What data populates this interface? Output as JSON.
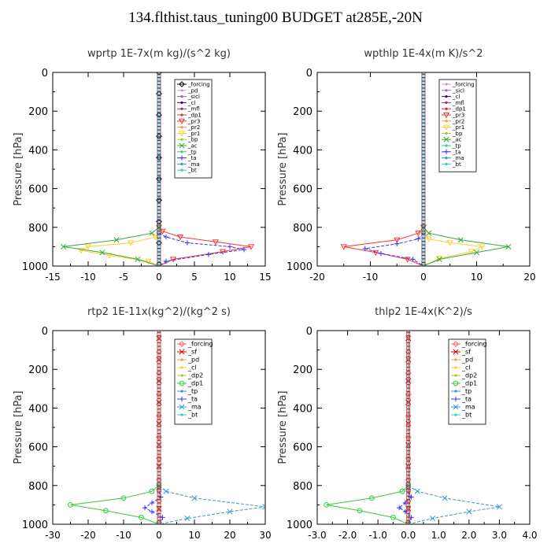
{
  "title": "134.flthist.taus_tuning00  BUDGET at285E,-20N",
  "chart_data": [
    {
      "type": "line",
      "title": "wprtp  1E-7x(m kg)/(s^2 kg)",
      "ylabel": "Pressure [hPa]",
      "xlim": [
        -15,
        15
      ],
      "ylim": [
        1000,
        0
      ],
      "xticks": [
        "-15",
        "-10",
        "-5",
        "0",
        "5",
        "10",
        "15"
      ],
      "yticks": [
        "0",
        "200",
        "400",
        "600",
        "800",
        "1000"
      ],
      "series": [
        {
          "name": "_forcing",
          "color": "#000000",
          "marker": "diamond-open",
          "x": [
            0,
            0,
            0,
            0,
            0,
            0,
            0,
            0,
            0,
            0
          ],
          "y": [
            0,
            110,
            220,
            330,
            440,
            550,
            660,
            770,
            880,
            990
          ]
        },
        {
          "name": "_pd",
          "color": "#cc99cc",
          "marker": "none",
          "x": [
            0,
            0
          ],
          "y": [
            0,
            1000
          ]
        },
        {
          "name": "_sicl",
          "color": "#9966cc",
          "marker": "none",
          "x": [
            0,
            0
          ],
          "y": [
            0,
            1000
          ]
        },
        {
          "name": "_cl",
          "color": "#660066",
          "marker": "none",
          "x": [
            0,
            0
          ],
          "y": [
            0,
            1000
          ]
        },
        {
          "name": "_mfl",
          "color": "#993366",
          "marker": "none",
          "x": [
            0,
            0
          ],
          "y": [
            0,
            1000
          ]
        },
        {
          "name": "_dp1",
          "color": "#cc3333",
          "marker": "none",
          "x": [
            0,
            0
          ],
          "y": [
            0,
            1000
          ]
        },
        {
          "name": "_pr3",
          "color": "#ff3333",
          "marker": "triangle-down",
          "x": [
            0,
            0.5,
            3,
            8,
            13,
            9,
            2,
            0
          ],
          "y": [
            800,
            820,
            850,
            875,
            900,
            925,
            965,
            1000
          ]
        },
        {
          "name": "_pr2",
          "color": "#ff9933",
          "marker": "none",
          "x": [
            0,
            0
          ],
          "y": [
            0,
            1000
          ]
        },
        {
          "name": "_pr1",
          "color": "#ffcc33",
          "marker": "triangle-down",
          "x": [
            0,
            -0.5,
            -4,
            -10,
            -11,
            -7,
            -1.5,
            0
          ],
          "y": [
            830,
            850,
            880,
            900,
            920,
            945,
            975,
            1000
          ]
        },
        {
          "name": "_bp",
          "color": "#99cc33",
          "marker": "none",
          "x": [
            0,
            0
          ],
          "y": [
            0,
            1000
          ]
        },
        {
          "name": "_ac",
          "color": "#33aa33",
          "marker": "x",
          "x": [
            0,
            -1,
            -6,
            -13.5,
            -8,
            -3,
            0
          ],
          "y": [
            800,
            830,
            865,
            900,
            930,
            965,
            1000
          ]
        },
        {
          "name": "_tp",
          "color": "#33cc99",
          "marker": "none",
          "x": [
            0,
            0
          ],
          "y": [
            0,
            1000
          ]
        },
        {
          "name": "_ta",
          "color": "#3333ff",
          "marker": "plus",
          "x": [
            0,
            1,
            4,
            10,
            12,
            7,
            1,
            0
          ],
          "y": [
            830,
            850,
            880,
            900,
            915,
            940,
            975,
            1000
          ]
        },
        {
          "name": "_ma",
          "color": "#3399cc",
          "marker": "none",
          "x": [
            0,
            0
          ],
          "y": [
            0,
            1000
          ]
        },
        {
          "name": "_bt",
          "color": "#33cccc",
          "marker": "none",
          "x": [
            0,
            0
          ],
          "y": [
            0,
            1000
          ]
        }
      ]
    },
    {
      "type": "line",
      "title": "wpthlp  1E-4x(m K)/s^2",
      "ylabel": "Pressure [hPa]",
      "xlim": [
        -20,
        20
      ],
      "ylim": [
        1000,
        0
      ],
      "xticks": [
        "-20",
        "-10",
        "0",
        "10",
        "20"
      ],
      "yticks": [
        "0",
        "200",
        "400",
        "600",
        "800",
        "1000"
      ],
      "series": [
        {
          "name": "_forcing",
          "color": "#cc99cc",
          "marker": "none",
          "x": [
            0,
            0
          ],
          "y": [
            0,
            1000
          ]
        },
        {
          "name": "_sicl",
          "color": "#9966cc",
          "marker": "none",
          "x": [
            0,
            0
          ],
          "y": [
            0,
            1000
          ]
        },
        {
          "name": "_cl",
          "color": "#660066",
          "marker": "none",
          "x": [
            0,
            0
          ],
          "y": [
            0,
            1000
          ]
        },
        {
          "name": "_mfl",
          "color": "#993366",
          "marker": "none",
          "x": [
            0,
            0
          ],
          "y": [
            0,
            1000
          ]
        },
        {
          "name": "_dp1",
          "color": "#cc3333",
          "marker": "none",
          "x": [
            0,
            0
          ],
          "y": [
            0,
            1000
          ]
        },
        {
          "name": "_pr3",
          "color": "#ff3333",
          "marker": "triangle-down",
          "x": [
            0,
            -1,
            -5,
            -15,
            -9,
            -3,
            0
          ],
          "y": [
            800,
            830,
            865,
            900,
            930,
            965,
            1000
          ]
        },
        {
          "name": "_pr2",
          "color": "#ff9933",
          "marker": "none",
          "x": [
            0,
            0
          ],
          "y": [
            0,
            1000
          ]
        },
        {
          "name": "_pr1",
          "color": "#ffcc33",
          "marker": "triangle-down",
          "x": [
            0,
            1,
            5,
            11,
            9,
            3,
            0
          ],
          "y": [
            830,
            860,
            880,
            900,
            925,
            960,
            1000
          ]
        },
        {
          "name": "_bp",
          "color": "#99cc33",
          "marker": "none",
          "x": [
            0,
            0
          ],
          "y": [
            0,
            1000
          ]
        },
        {
          "name": "_ac",
          "color": "#33aa33",
          "marker": "x",
          "x": [
            0,
            1,
            7,
            16,
            10,
            3,
            0
          ],
          "y": [
            800,
            830,
            865,
            900,
            930,
            965,
            1000
          ]
        },
        {
          "name": "_tp",
          "color": "#33cc99",
          "marker": "none",
          "x": [
            0,
            0
          ],
          "y": [
            0,
            1000
          ]
        },
        {
          "name": "_ta",
          "color": "#3333ff",
          "marker": "plus",
          "x": [
            0,
            -1,
            -5,
            -11,
            -8,
            -2,
            0
          ],
          "y": [
            830,
            860,
            885,
            910,
            935,
            965,
            1000
          ]
        },
        {
          "name": "_ma",
          "color": "#3399cc",
          "marker": "none",
          "x": [
            0,
            0
          ],
          "y": [
            0,
            1000
          ]
        },
        {
          "name": "_bt",
          "color": "#33cccc",
          "marker": "none",
          "x": [
            0,
            0
          ],
          "y": [
            0,
            1000
          ]
        }
      ]
    },
    {
      "type": "line",
      "title": "rtp2  1E-11x(kg^2)/(kg^2 s)",
      "ylabel": "Pressure [hPa]",
      "xlim": [
        -30,
        30
      ],
      "ylim": [
        1000,
        0
      ],
      "xticks": [
        "-30",
        "-20",
        "-10",
        "0",
        "10",
        "20",
        "30"
      ],
      "yticks": [
        "0",
        "200",
        "400",
        "600",
        "800",
        "1000"
      ],
      "series": [
        {
          "name": "_forcing",
          "color": "#ff6666",
          "marker": "diamond-open",
          "x": [
            0,
            0,
            0,
            0,
            0,
            0,
            0,
            0,
            0,
            0
          ],
          "y": [
            0,
            110,
            220,
            330,
            440,
            550,
            660,
            770,
            880,
            990
          ]
        },
        {
          "name": "_sf",
          "color": "#cc0000",
          "marker": "x",
          "x": [
            0,
            0,
            0,
            0,
            0,
            0,
            0,
            0,
            0,
            0
          ],
          "y": [
            40,
            150,
            260,
            370,
            480,
            590,
            700,
            810,
            920,
            1000
          ]
        },
        {
          "name": "_pd",
          "color": "#ff9933",
          "marker": "none",
          "x": [
            0,
            0
          ],
          "y": [
            0,
            1000
          ]
        },
        {
          "name": "_cl",
          "color": "#ffcc33",
          "marker": "none",
          "x": [
            0,
            0
          ],
          "y": [
            0,
            1000
          ]
        },
        {
          "name": "_dp2",
          "color": "#99cc33",
          "marker": "none",
          "x": [
            0,
            0
          ],
          "y": [
            0,
            1000
          ]
        },
        {
          "name": "_dp1",
          "color": "#33cc33",
          "marker": "circle-open",
          "x": [
            0,
            -2,
            -10,
            -25,
            -15,
            -5,
            0
          ],
          "y": [
            800,
            830,
            865,
            900,
            930,
            965,
            1000
          ]
        },
        {
          "name": "_tp",
          "color": "#3399cc",
          "marker": "none",
          "x": [
            0,
            0
          ],
          "y": [
            0,
            1000
          ]
        },
        {
          "name": "_ta",
          "color": "#3333ff",
          "marker": "plus",
          "x": [
            0,
            0.5,
            -2,
            -4,
            -2,
            1,
            0
          ],
          "y": [
            830,
            860,
            890,
            915,
            935,
            965,
            1000
          ]
        },
        {
          "name": "_ma",
          "color": "#3399cc",
          "marker": "x",
          "x": [
            0,
            2,
            10,
            30,
            20,
            8,
            0
          ],
          "y": [
            800,
            830,
            865,
            910,
            935,
            970,
            1000
          ]
        },
        {
          "name": "_bt",
          "color": "#33cccc",
          "marker": "none",
          "x": [
            0,
            0
          ],
          "y": [
            0,
            1000
          ]
        }
      ]
    },
    {
      "type": "line",
      "title": "thlp2  1E-4x(K^2)/s",
      "ylabel": "Pressure [hPa]",
      "xlim": [
        -3.0,
        4.0
      ],
      "ylim": [
        1000,
        0
      ],
      "xticks": [
        "-3.0",
        "-2.0",
        "-1.0",
        "0.0",
        "1.0",
        "2.0",
        "3.0",
        "4.0"
      ],
      "yticks": [
        "0",
        "200",
        "400",
        "600",
        "800",
        "1000"
      ],
      "series": [
        {
          "name": "_forcing",
          "color": "#ff6666",
          "marker": "diamond-open",
          "x": [
            0,
            0,
            0,
            0,
            0,
            0,
            0,
            0,
            0,
            0
          ],
          "y": [
            0,
            110,
            220,
            330,
            440,
            550,
            660,
            770,
            880,
            990
          ]
        },
        {
          "name": "_sf",
          "color": "#cc0000",
          "marker": "x",
          "x": [
            0,
            0,
            0,
            0,
            0,
            0,
            0,
            0,
            0,
            0
          ],
          "y": [
            40,
            150,
            260,
            370,
            480,
            590,
            700,
            810,
            920,
            1000
          ]
        },
        {
          "name": "_pd",
          "color": "#ff9933",
          "marker": "none",
          "x": [
            0,
            0
          ],
          "y": [
            0,
            1000
          ]
        },
        {
          "name": "_cl",
          "color": "#ffcc33",
          "marker": "none",
          "x": [
            0,
            0
          ],
          "y": [
            0,
            1000
          ]
        },
        {
          "name": "_dp2",
          "color": "#99cc33",
          "marker": "none",
          "x": [
            0,
            0
          ],
          "y": [
            0,
            1000
          ]
        },
        {
          "name": "_dp1",
          "color": "#33cc33",
          "marker": "circle-open",
          "x": [
            0,
            -0.2,
            -1.2,
            -2.7,
            -1.6,
            -0.5,
            0
          ],
          "y": [
            800,
            830,
            865,
            900,
            930,
            965,
            1000
          ]
        },
        {
          "name": "_tp",
          "color": "#3399cc",
          "marker": "none",
          "x": [
            0,
            0
          ],
          "y": [
            0,
            1000
          ]
        },
        {
          "name": "_ta",
          "color": "#3333ff",
          "marker": "plus",
          "x": [
            0,
            0.1,
            -0.1,
            -0.3,
            -0.1,
            0.1,
            0
          ],
          "y": [
            830,
            860,
            890,
            915,
            935,
            965,
            1000
          ]
        },
        {
          "name": "_ma",
          "color": "#3399cc",
          "marker": "x",
          "x": [
            0,
            0.3,
            1.2,
            3.0,
            2.0,
            0.8,
            0
          ],
          "y": [
            800,
            830,
            865,
            910,
            935,
            970,
            1000
          ]
        },
        {
          "name": "_bt",
          "color": "#33cccc",
          "marker": "none",
          "x": [
            0,
            0
          ],
          "y": [
            0,
            1000
          ]
        }
      ]
    }
  ]
}
